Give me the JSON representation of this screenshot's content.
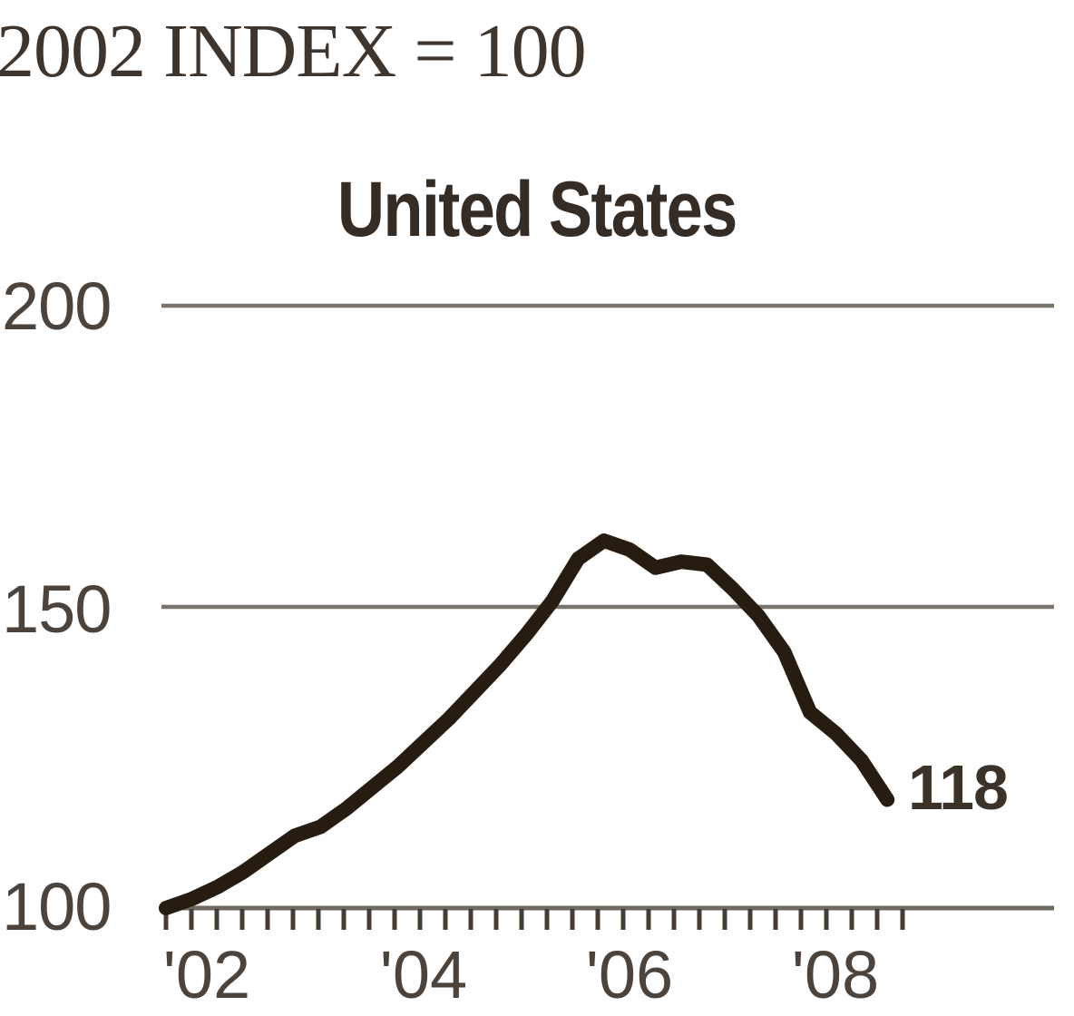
{
  "header": {
    "index_note": "2002 INDEX = 100"
  },
  "chart_data": {
    "type": "line",
    "title": "United States",
    "note": "2002 INDEX = 100",
    "series_name": "United States",
    "x": [
      2002.0,
      2002.25,
      2002.5,
      2002.75,
      2003.0,
      2003.25,
      2003.5,
      2003.75,
      2004.0,
      2004.25,
      2004.5,
      2004.75,
      2005.0,
      2005.25,
      2005.5,
      2005.75,
      2006.0,
      2006.25,
      2006.5,
      2006.75,
      2007.0,
      2007.25,
      2007.5,
      2007.75,
      2008.0,
      2008.25,
      2008.5,
      2008.75,
      2009.0
    ],
    "values": [
      100,
      101.5,
      103.5,
      106,
      109,
      112,
      113.5,
      116.5,
      120,
      123.5,
      127.5,
      131.5,
      136,
      140.5,
      145.5,
      151,
      158,
      161,
      159.5,
      156.5,
      157.5,
      157,
      153,
      148.5,
      142.5,
      132.5,
      129,
      124.5,
      118
    ],
    "end_label": "118",
    "peak_value": 161,
    "xlabel": "",
    "ylabel": "",
    "ylim": [
      95,
      210
    ],
    "xlim": [
      2002,
      2009.3
    ],
    "grid": "horizontal",
    "legend": "none",
    "minor_ticks": "quarterly",
    "yticks": [
      {
        "value": 200,
        "label": "200"
      },
      {
        "value": 150,
        "label": "150"
      },
      {
        "value": 100,
        "label": "100"
      }
    ],
    "xticks": [
      {
        "year": 2002.5,
        "label": "'02"
      },
      {
        "year": 2004.5,
        "label": "'04"
      },
      {
        "year": 2006.5,
        "label": "'06"
      },
      {
        "year": 2008.5,
        "label": "'08"
      }
    ],
    "colors": {
      "line": "#271c11",
      "grid": "#7b746d",
      "axis": "#6f6962",
      "tick": "#463e35",
      "text": "#4b433c",
      "title": "#342c25",
      "annotation": "#3b322a",
      "background": "#ffffff"
    }
  }
}
